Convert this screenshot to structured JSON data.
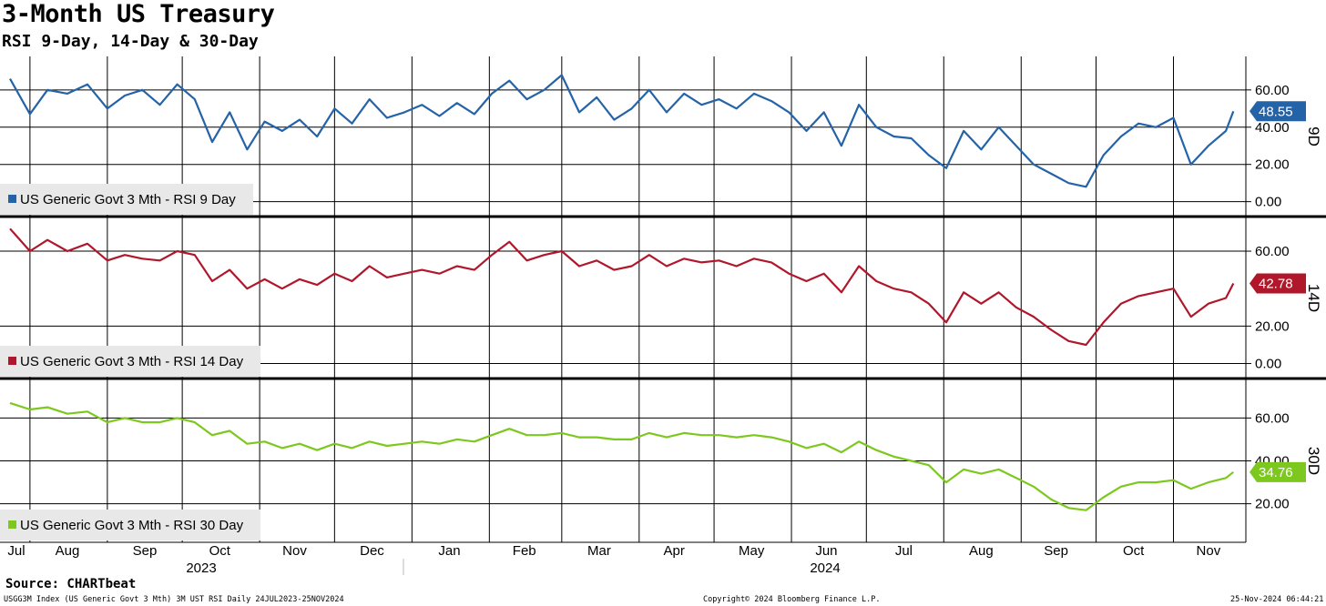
{
  "title": "3-Month US Treasury",
  "subtitle": "RSI 9-Day, 14-Day & 30-Day",
  "source": "Source: CHARTbeat",
  "footer": {
    "left": "USGG3M Index (US Generic Govt 3 Mth) 3M UST RSI  Daily 24JUL2023-25NOV2024",
    "center": "Copyright© 2024 Bloomberg Finance L.P.",
    "right": "25-Nov-2024 06:44:21"
  },
  "colors": {
    "rsi9": "#2563a8",
    "rsi14": "#b0172b",
    "rsi30": "#7dc81e",
    "grid": "#000000",
    "legend_bg": "#e8e8e8"
  },
  "chart_data": [
    {
      "type": "line",
      "panel_label": "9D",
      "legend": "US Generic Govt 3 Mth - RSI 9 Day",
      "last_value_label": "48.55",
      "ylim": [
        -8,
        78
      ],
      "yticks": [
        "60.00",
        "40.00",
        "20.00",
        "0.00"
      ],
      "ytick_values": [
        60,
        40,
        20,
        0
      ],
      "grid": true,
      "series": [
        {
          "x": [
            "2023-07-24",
            "2023-08-01",
            "2023-08-08",
            "2023-08-16",
            "2023-08-24",
            "2023-09-01",
            "2023-09-08",
            "2023-09-15",
            "2023-09-22",
            "2023-09-29",
            "2023-10-06",
            "2023-10-13",
            "2023-10-20",
            "2023-10-27",
            "2023-11-03",
            "2023-11-10",
            "2023-11-17",
            "2023-11-24",
            "2023-12-01",
            "2023-12-08",
            "2023-12-15",
            "2023-12-22",
            "2023-12-29",
            "2024-01-05",
            "2024-01-12",
            "2024-01-19",
            "2024-01-26",
            "2024-02-02",
            "2024-02-09",
            "2024-02-16",
            "2024-02-23",
            "2024-03-01",
            "2024-03-08",
            "2024-03-15",
            "2024-03-22",
            "2024-03-29",
            "2024-04-05",
            "2024-04-12",
            "2024-04-19",
            "2024-04-26",
            "2024-05-03",
            "2024-05-10",
            "2024-05-17",
            "2024-05-24",
            "2024-05-31",
            "2024-06-07",
            "2024-06-14",
            "2024-06-21",
            "2024-06-28",
            "2024-07-05",
            "2024-07-12",
            "2024-07-19",
            "2024-07-26",
            "2024-08-02",
            "2024-08-09",
            "2024-08-16",
            "2024-08-23",
            "2024-08-30",
            "2024-09-06",
            "2024-09-13",
            "2024-09-20",
            "2024-09-27",
            "2024-10-04",
            "2024-10-11",
            "2024-10-18",
            "2024-10-25",
            "2024-11-01",
            "2024-11-08",
            "2024-11-15",
            "2024-11-22",
            "2024-11-25"
          ],
          "values": [
            66,
            47,
            60,
            58,
            63,
            50,
            57,
            60,
            52,
            63,
            55,
            32,
            48,
            28,
            43,
            38,
            44,
            35,
            50,
            42,
            55,
            45,
            48,
            52,
            46,
            53,
            47,
            58,
            65,
            55,
            60,
            68,
            48,
            56,
            44,
            50,
            60,
            48,
            58,
            52,
            55,
            50,
            58,
            54,
            48,
            38,
            48,
            30,
            52,
            40,
            35,
            34,
            25,
            18,
            38,
            28,
            40,
            30,
            20,
            15,
            10,
            8,
            25,
            35,
            42,
            40,
            45,
            20,
            30,
            38,
            48.55
          ]
        }
      ]
    },
    {
      "type": "line",
      "panel_label": "14D",
      "legend": "US Generic Govt 3 Mth - RSI 14 Day",
      "last_value_label": "42.78",
      "ylim": [
        -8,
        78
      ],
      "yticks": [
        "60.00",
        "20.00",
        "0.00"
      ],
      "ytick_values": [
        60,
        20,
        0
      ],
      "grid": true,
      "series": [
        {
          "x": [
            "2023-07-24",
            "2023-08-01",
            "2023-08-08",
            "2023-08-16",
            "2023-08-24",
            "2023-09-01",
            "2023-09-08",
            "2023-09-15",
            "2023-09-22",
            "2023-09-29",
            "2023-10-06",
            "2023-10-13",
            "2023-10-20",
            "2023-10-27",
            "2023-11-03",
            "2023-11-10",
            "2023-11-17",
            "2023-11-24",
            "2023-12-01",
            "2023-12-08",
            "2023-12-15",
            "2023-12-22",
            "2023-12-29",
            "2024-01-05",
            "2024-01-12",
            "2024-01-19",
            "2024-01-26",
            "2024-02-02",
            "2024-02-09",
            "2024-02-16",
            "2024-02-23",
            "2024-03-01",
            "2024-03-08",
            "2024-03-15",
            "2024-03-22",
            "2024-03-29",
            "2024-04-05",
            "2024-04-12",
            "2024-04-19",
            "2024-04-26",
            "2024-05-03",
            "2024-05-10",
            "2024-05-17",
            "2024-05-24",
            "2024-05-31",
            "2024-06-07",
            "2024-06-14",
            "2024-06-21",
            "2024-06-28",
            "2024-07-05",
            "2024-07-12",
            "2024-07-19",
            "2024-07-26",
            "2024-08-02",
            "2024-08-09",
            "2024-08-16",
            "2024-08-23",
            "2024-08-30",
            "2024-09-06",
            "2024-09-13",
            "2024-09-20",
            "2024-09-27",
            "2024-10-04",
            "2024-10-11",
            "2024-10-18",
            "2024-10-25",
            "2024-11-01",
            "2024-11-08",
            "2024-11-15",
            "2024-11-22",
            "2024-11-25"
          ],
          "values": [
            72,
            60,
            66,
            60,
            64,
            55,
            58,
            56,
            55,
            60,
            58,
            44,
            50,
            40,
            45,
            40,
            45,
            42,
            48,
            44,
            52,
            46,
            48,
            50,
            48,
            52,
            50,
            58,
            65,
            55,
            58,
            60,
            52,
            55,
            50,
            52,
            58,
            52,
            56,
            54,
            55,
            52,
            56,
            54,
            48,
            44,
            48,
            38,
            52,
            44,
            40,
            38,
            32,
            22,
            38,
            32,
            38,
            30,
            25,
            18,
            12,
            10,
            22,
            32,
            36,
            38,
            40,
            25,
            32,
            35,
            42.78
          ]
        }
      ]
    },
    {
      "type": "line",
      "panel_label": "30D",
      "legend": "US Generic Govt 3 Mth - RSI 30 Day",
      "last_value_label": "34.76",
      "ylim": [
        2,
        78
      ],
      "yticks": [
        "60.00",
        "40.00",
        "20.00"
      ],
      "ytick_values": [
        60,
        40,
        20
      ],
      "grid": true,
      "series": [
        {
          "x": [
            "2023-07-24",
            "2023-08-01",
            "2023-08-08",
            "2023-08-16",
            "2023-08-24",
            "2023-09-01",
            "2023-09-08",
            "2023-09-15",
            "2023-09-22",
            "2023-09-29",
            "2023-10-06",
            "2023-10-13",
            "2023-10-20",
            "2023-10-27",
            "2023-11-03",
            "2023-11-10",
            "2023-11-17",
            "2023-11-24",
            "2023-12-01",
            "2023-12-08",
            "2023-12-15",
            "2023-12-22",
            "2023-12-29",
            "2024-01-05",
            "2024-01-12",
            "2024-01-19",
            "2024-01-26",
            "2024-02-02",
            "2024-02-09",
            "2024-02-16",
            "2024-02-23",
            "2024-03-01",
            "2024-03-08",
            "2024-03-15",
            "2024-03-22",
            "2024-03-29",
            "2024-04-05",
            "2024-04-12",
            "2024-04-19",
            "2024-04-26",
            "2024-05-03",
            "2024-05-10",
            "2024-05-17",
            "2024-05-24",
            "2024-05-31",
            "2024-06-07",
            "2024-06-14",
            "2024-06-21",
            "2024-06-28",
            "2024-07-05",
            "2024-07-12",
            "2024-07-19",
            "2024-07-26",
            "2024-08-02",
            "2024-08-09",
            "2024-08-16",
            "2024-08-23",
            "2024-08-30",
            "2024-09-06",
            "2024-09-13",
            "2024-09-20",
            "2024-09-27",
            "2024-10-04",
            "2024-10-11",
            "2024-10-18",
            "2024-10-25",
            "2024-11-01",
            "2024-11-08",
            "2024-11-15",
            "2024-11-22",
            "2024-11-25"
          ],
          "values": [
            67,
            64,
            65,
            62,
            63,
            58,
            60,
            58,
            58,
            60,
            58,
            52,
            54,
            48,
            49,
            46,
            48,
            45,
            48,
            46,
            49,
            47,
            48,
            49,
            48,
            50,
            49,
            52,
            55,
            52,
            52,
            53,
            51,
            51,
            50,
            50,
            53,
            51,
            53,
            52,
            52,
            51,
            52,
            51,
            49,
            46,
            48,
            44,
            49,
            45,
            42,
            40,
            38,
            30,
            36,
            34,
            36,
            32,
            28,
            22,
            18,
            17,
            23,
            28,
            30,
            30,
            31,
            27,
            30,
            32,
            34.76
          ]
        }
      ]
    }
  ],
  "x_axis": {
    "months": [
      {
        "label": "Jul",
        "date": "2023-07-24"
      },
      {
        "label": "Aug",
        "date": "2023-08-16"
      },
      {
        "label": "Sep",
        "date": "2023-09-16"
      },
      {
        "label": "Oct",
        "date": "2023-10-16"
      },
      {
        "label": "Nov",
        "date": "2023-11-15"
      },
      {
        "label": "Dec",
        "date": "2023-12-16"
      },
      {
        "label": "Jan",
        "date": "2024-01-16"
      },
      {
        "label": "Feb",
        "date": "2024-02-15"
      },
      {
        "label": "Mar",
        "date": "2024-03-16"
      },
      {
        "label": "Apr",
        "date": "2024-04-15"
      },
      {
        "label": "May",
        "date": "2024-05-16"
      },
      {
        "label": "Jun",
        "date": "2024-06-15"
      },
      {
        "label": "Jul",
        "date": "2024-07-16"
      },
      {
        "label": "Aug",
        "date": "2024-08-16"
      },
      {
        "label": "Sep",
        "date": "2024-09-15"
      },
      {
        "label": "Oct",
        "date": "2024-10-16"
      },
      {
        "label": "Nov",
        "date": "2024-11-15"
      }
    ],
    "month_boundaries": [
      "2023-08-01",
      "2023-09-01",
      "2023-10-01",
      "2023-11-01",
      "2023-12-01",
      "2024-01-01",
      "2024-02-01",
      "2024-03-01",
      "2024-04-01",
      "2024-05-01",
      "2024-06-01",
      "2024-07-01",
      "2024-08-01",
      "2024-09-01",
      "2024-10-01",
      "2024-11-01"
    ],
    "years": [
      {
        "label": "2023",
        "date": "2023-10-01"
      },
      {
        "label": "2024",
        "date": "2024-06-01"
      }
    ],
    "range": [
      "2023-07-20",
      "2024-11-30"
    ]
  }
}
